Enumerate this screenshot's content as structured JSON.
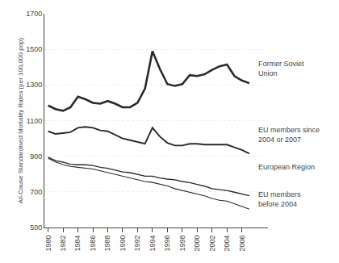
{
  "chart_data": {
    "type": "line",
    "ylabel": "All-Cause Standardised Mortality Rates (per 100,000 pop)",
    "x": [
      1980,
      1981,
      1982,
      1983,
      1984,
      1985,
      1986,
      1987,
      1988,
      1989,
      1990,
      1991,
      1992,
      1993,
      1994,
      1995,
      1996,
      1997,
      1998,
      1999,
      2000,
      2001,
      2002,
      2003,
      2004,
      2005,
      2006,
      2007
    ],
    "series": [
      {
        "color": "#2a2a2a",
        "values": [
          1185,
          1165,
          1155,
          1175,
          1235,
          1220,
          1200,
          1195,
          1210,
          1195,
          1175,
          1175,
          1200,
          1280,
          1490,
          1390,
          1305,
          1295,
          1305,
          1355,
          1350,
          1360,
          1385,
          1405,
          1415,
          1350,
          1325,
          1310
        ]
      },
      {
        "color": "#2a2a2a",
        "values": [
          1040,
          1025,
          1030,
          1035,
          1060,
          1065,
          1060,
          1045,
          1040,
          1020,
          1000,
          990,
          980,
          970,
          1060,
          1010,
          975,
          960,
          960,
          970,
          970,
          965,
          965,
          965,
          965,
          950,
          935,
          915
        ]
      },
      {
        "color": "#2a2a2a",
        "values": [
          895,
          875,
          867,
          855,
          852,
          852,
          848,
          838,
          832,
          822,
          812,
          808,
          798,
          788,
          788,
          778,
          772,
          768,
          758,
          752,
          742,
          732,
          718,
          712,
          708,
          698,
          688,
          678
        ]
      },
      {
        "color": "#2a2a2a",
        "values": [
          888,
          868,
          853,
          843,
          838,
          833,
          828,
          818,
          808,
          798,
          788,
          778,
          768,
          758,
          753,
          743,
          733,
          718,
          708,
          698,
          688,
          678,
          663,
          653,
          648,
          633,
          618,
          603
        ]
      }
    ],
    "annotations": [
      {
        "text": "Former Soviet\nUnion",
        "x": 2008.0,
        "y": 1390
      },
      {
        "text": "EU members since\n2004 or 2007",
        "x": 2008.0,
        "y": 1020
      },
      {
        "text": "European Region",
        "x": 2008.0,
        "y": 838
      },
      {
        "text": "EU members\nbefore 2004",
        "x": 2008.0,
        "y": 660
      }
    ],
    "xlim": [
      1979.5,
      2009.5
    ],
    "xticks": [
      1980,
      1982,
      1984,
      1986,
      1988,
      1990,
      1992,
      1994,
      1996,
      1998,
      2000,
      2002,
      2004,
      2006
    ],
    "ylim": [
      500,
      1700
    ],
    "yticks": [
      500,
      700,
      900,
      1100,
      1300,
      1500,
      1700
    ],
    "grid": true,
    "legend": false
  }
}
